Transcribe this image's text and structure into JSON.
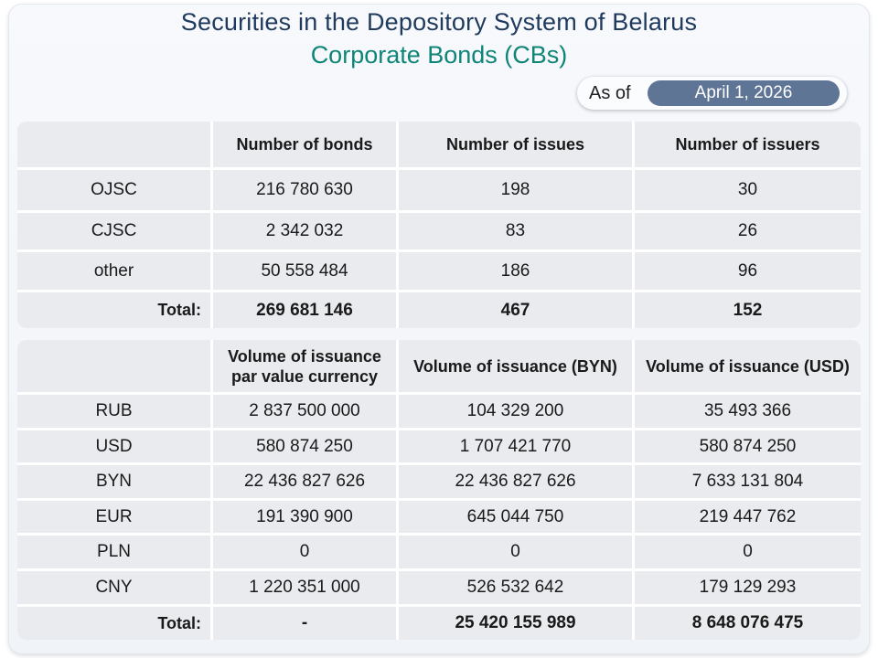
{
  "header": {
    "title": "Securities in the Depository System of Belarus",
    "subtitle": "Corporate Bonds (CBs)",
    "as_of_label": "As of",
    "as_of_date": "April 1, 2026"
  },
  "table1": {
    "columns": [
      "",
      "Number of bonds",
      "Number of issues",
      "Number of issuers"
    ],
    "rows": [
      [
        "OJSC",
        "216 780 630",
        "198",
        "30"
      ],
      [
        "CJSC",
        "2 342 032",
        "83",
        "26"
      ],
      [
        "other",
        "50 558 484",
        "186",
        "96"
      ]
    ],
    "total": [
      "Total:",
      "269 681 146",
      "467",
      "152"
    ]
  },
  "table2": {
    "columns": [
      "",
      "Volume of issuance par value currency",
      "Volume of issuance (BYN)",
      "Volume of issuance (USD)"
    ],
    "rows": [
      [
        "RUB",
        "2 837 500 000",
        "104 329 200",
        "35 493 366"
      ],
      [
        "USD",
        "580 874 250",
        "1 707 421 770",
        "580 874 250"
      ],
      [
        "BYN",
        "22 436 827 626",
        "22 436 827 626",
        "7 633 131 804"
      ],
      [
        "EUR",
        "191 390 900",
        "645 044 750",
        "219 447 762"
      ],
      [
        "PLN",
        "0",
        "0",
        "0"
      ],
      [
        "CNY",
        "1 220 351 000",
        "526 532 642",
        "179 129 293"
      ]
    ],
    "total": [
      "Total:",
      "-",
      "25 420 155 989",
      "8 648 076 475"
    ]
  }
}
